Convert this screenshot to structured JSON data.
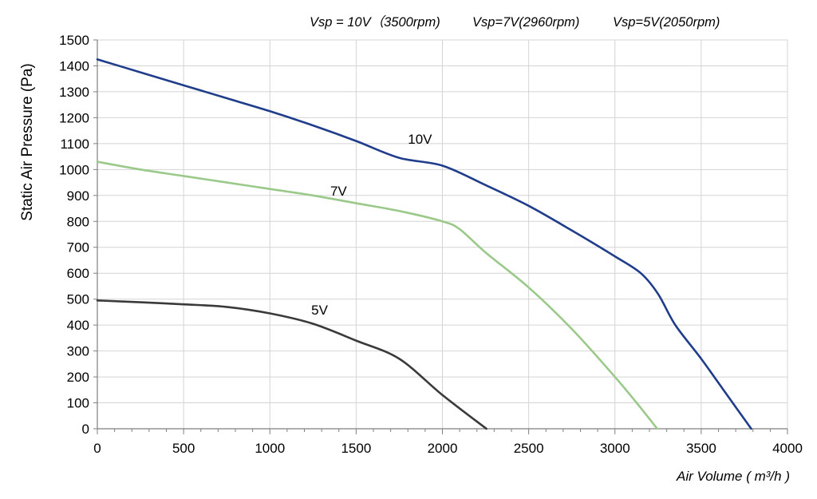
{
  "chart_data": {
    "type": "line",
    "header_labels": [
      "Vsp = 10V（3500rpm)",
      "Vsp=7V(2960rpm)",
      "Vsp=5V(2050rpm)"
    ],
    "xlabel": "Air Volume ( m³/h )",
    "ylabel": "Static Air Pressure  (Pa)",
    "xlim": [
      0,
      4000
    ],
    "ylim": [
      0,
      1500
    ],
    "xticks": [
      0,
      500,
      1000,
      1500,
      2000,
      2500,
      3000,
      3500,
      4000
    ],
    "yticks": [
      0,
      100,
      200,
      300,
      400,
      500,
      600,
      700,
      800,
      900,
      1000,
      1100,
      1200,
      1300,
      1400,
      1500
    ],
    "grid": true,
    "series": [
      {
        "name": "10V",
        "color": "#1f3d8a",
        "x": [
          0,
          250,
          500,
          750,
          1000,
          1250,
          1500,
          1750,
          2000,
          2250,
          2500,
          2750,
          3000,
          3150,
          3250,
          3350,
          3500,
          3650,
          3790
        ],
        "y": [
          1425,
          1375,
          1325,
          1275,
          1225,
          1170,
          1110,
          1045,
          1015,
          940,
          860,
          765,
          665,
          600,
          520,
          400,
          270,
          130,
          0
        ]
      },
      {
        "name": "7V",
        "color": "#9bc98a",
        "x": [
          0,
          250,
          500,
          750,
          1000,
          1250,
          1500,
          1750,
          2000,
          2100,
          2250,
          2500,
          2750,
          3000,
          3150,
          3245
        ],
        "y": [
          1030,
          1000,
          975,
          950,
          925,
          900,
          870,
          840,
          800,
          770,
          680,
          545,
          385,
          200,
          80,
          0
        ]
      },
      {
        "name": "5V",
        "color": "#3a3a3a",
        "x": [
          0,
          250,
          500,
          750,
          1000,
          1250,
          1500,
          1750,
          2000,
          2255
        ],
        "y": [
          495,
          488,
          480,
          470,
          445,
          405,
          340,
          270,
          130,
          0
        ]
      }
    ],
    "annotations": [
      {
        "text": "10V",
        "x": 1800,
        "y": 1100
      },
      {
        "text": "7V",
        "x": 1350,
        "y": 900
      },
      {
        "text": "5V",
        "x": 1240,
        "y": 440
      }
    ]
  }
}
